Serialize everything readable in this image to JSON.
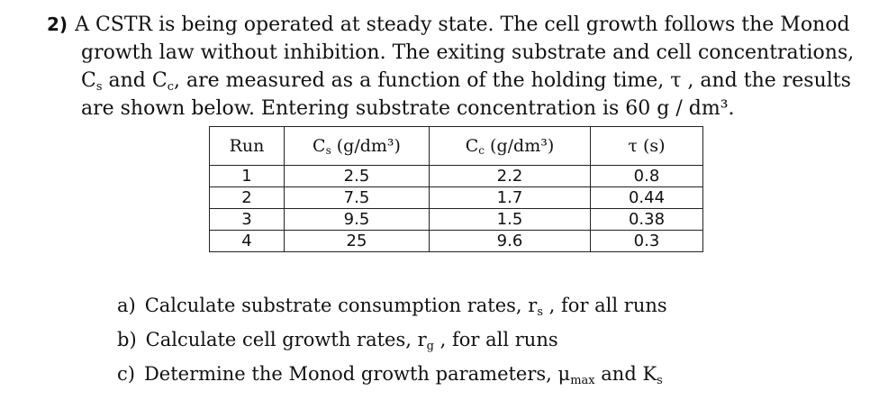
{
  "problem": {
    "number": "2)",
    "line1": "A CSTR is being operated at steady state. The cell growth follows the Monod",
    "line2": "growth law without inhibition. The exiting substrate and cell concentrations,",
    "line3_a": "C",
    "line3_sub1": "s",
    "line3_b": " and C",
    "line3_sub2": "c",
    "line3_c": ", are measured as a function of the holding time, τ , and the results",
    "line4": "are shown below. Entering substrate concentration is 60 g / dm³."
  },
  "table": {
    "headers": [
      {
        "main": "Run",
        "sub": "",
        "rest": ""
      },
      {
        "main": "C",
        "sub": "s",
        "rest": " (g/dm³)"
      },
      {
        "main": "C",
        "sub": "c",
        "rest": " (g/dm³)"
      },
      {
        "main": "τ (s)",
        "sub": "",
        "rest": ""
      }
    ],
    "rows": [
      [
        "1",
        "2.5",
        "2.2",
        "0.8"
      ],
      [
        "2",
        "7.5",
        "1.7",
        "0.44"
      ],
      [
        "3",
        "9.5",
        "1.5",
        "0.38"
      ],
      [
        "4",
        "25",
        "9.6",
        "0.3"
      ]
    ]
  },
  "questions": [
    {
      "label": "a)",
      "text": "Calculate substrate consumption rates, r",
      "sub": "s",
      "tail": " , for all runs",
      "tail2": "",
      "sub2": ""
    },
    {
      "label": "b)",
      "text": "Calculate cell growth rates, r",
      "sub": "g",
      "tail": " , for all runs",
      "tail2": "",
      "sub2": ""
    },
    {
      "label": "c)",
      "text": "Determine the Monod growth parameters, μ",
      "sub": "max",
      "tail": " and K",
      "sub2": "s",
      "tail2": ""
    }
  ]
}
